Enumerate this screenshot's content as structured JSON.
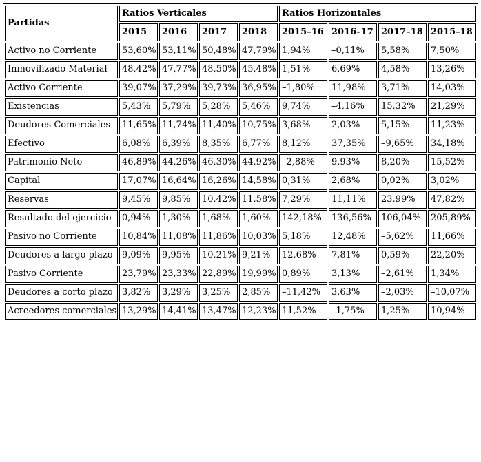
{
  "table": {
    "corner_header": "Partidas",
    "group_headers": [
      {
        "label": "Ratios Verticales",
        "colspan": 4
      },
      {
        "label": "Ratios Horizontales",
        "colspan": 4
      }
    ],
    "column_headers": [
      "2015",
      "2016",
      "2017",
      "2018",
      "2015–16",
      "2016–17",
      "2017–18",
      "2015–18"
    ],
    "rows": [
      {
        "label": "Activo no Corriente",
        "values": [
          "53,60%",
          "53,11%",
          "50,48%",
          "47,79%",
          "1,94%",
          "–0,11%",
          "5,58%",
          "7,50%"
        ]
      },
      {
        "label": "Inmovilizado Material",
        "values": [
          "48,42%",
          "47,77%",
          "48,50%",
          "45,48%",
          "1,51%",
          "6,69%",
          "4,58%",
          "13,26%"
        ]
      },
      {
        "label": "Activo Corriente",
        "values": [
          "39,07%",
          "37,29%",
          "39,73%",
          "36,95%",
          "–1,80%",
          "11,98%",
          "3,71%",
          "14,03%"
        ]
      },
      {
        "label": "Existencias",
        "values": [
          "5,43%",
          "5,79%",
          "5,28%",
          "5,46%",
          "9,74%",
          "–4,16%",
          "15,32%",
          "21,29%"
        ]
      },
      {
        "label": "Deudores Comerciales",
        "values": [
          "11,65%",
          "11,74%",
          "11,40%",
          "10,75%",
          "3,68%",
          "2,03%",
          "5,15%",
          "11,23%"
        ]
      },
      {
        "label": "Efectivo",
        "values": [
          "6,08%",
          "6,39%",
          "8,35%",
          "6,77%",
          "8,12%",
          "37,35%",
          "–9,65%",
          "34,18%"
        ]
      },
      {
        "label": "Patrimonio Neto",
        "values": [
          "46,89%",
          "44,26%",
          "46,30%",
          "44,92%",
          "–2,88%",
          "9,93%",
          "8,20%",
          "15,52%"
        ]
      },
      {
        "label": "Capital",
        "values": [
          "17,07%",
          "16,64%",
          "16,26%",
          "14,58%",
          "0,31%",
          "2,68%",
          "0,02%",
          "3,02%"
        ]
      },
      {
        "label": "Reservas",
        "values": [
          "9,45%",
          "9,85%",
          "10,42%",
          "11,58%",
          "7,29%",
          "11,11%",
          "23,99%",
          "47,82%"
        ]
      },
      {
        "label": "Resultado del ejercicio",
        "values": [
          "0,94%",
          "1,30%",
          "1,68%",
          "1,60%",
          "142,18%",
          "136,56%",
          "106,04%",
          "205,89%"
        ]
      },
      {
        "label": "Pasivo no Corriente",
        "values": [
          "10,84%",
          "11,08%",
          "11,86%",
          "10,03%",
          "5,18%",
          "12,48%",
          "–5,62%",
          "11,66%"
        ]
      },
      {
        "label": "Deudores a largo plazo",
        "values": [
          "9,09%",
          "9,95%",
          "10,21%",
          "9,21%",
          "12,68%",
          "7,81%",
          "0,59%",
          "22,20%"
        ]
      },
      {
        "label": "Pasivo Corriente",
        "values": [
          "23,79%",
          "23,33%",
          "22,89%",
          "19,99%",
          "0,89%",
          "3,13%",
          "–2,61%",
          "1,34%"
        ]
      },
      {
        "label": "Deudores a corto plazo",
        "values": [
          "3,82%",
          "3,29%",
          "3,25%",
          "2,85%",
          "–11,42%",
          "3,63%",
          "–2,03%",
          "–10,07%"
        ]
      },
      {
        "label": "Acreedores comerciales",
        "values": [
          "13,29%",
          "14,41%",
          "13,47%",
          "12,23%",
          "11,52%",
          "–1,75%",
          "1,25%",
          "10,94%"
        ]
      }
    ],
    "colors": {
      "border": "#000000",
      "text": "#000000",
      "background": "#ffffff"
    }
  }
}
